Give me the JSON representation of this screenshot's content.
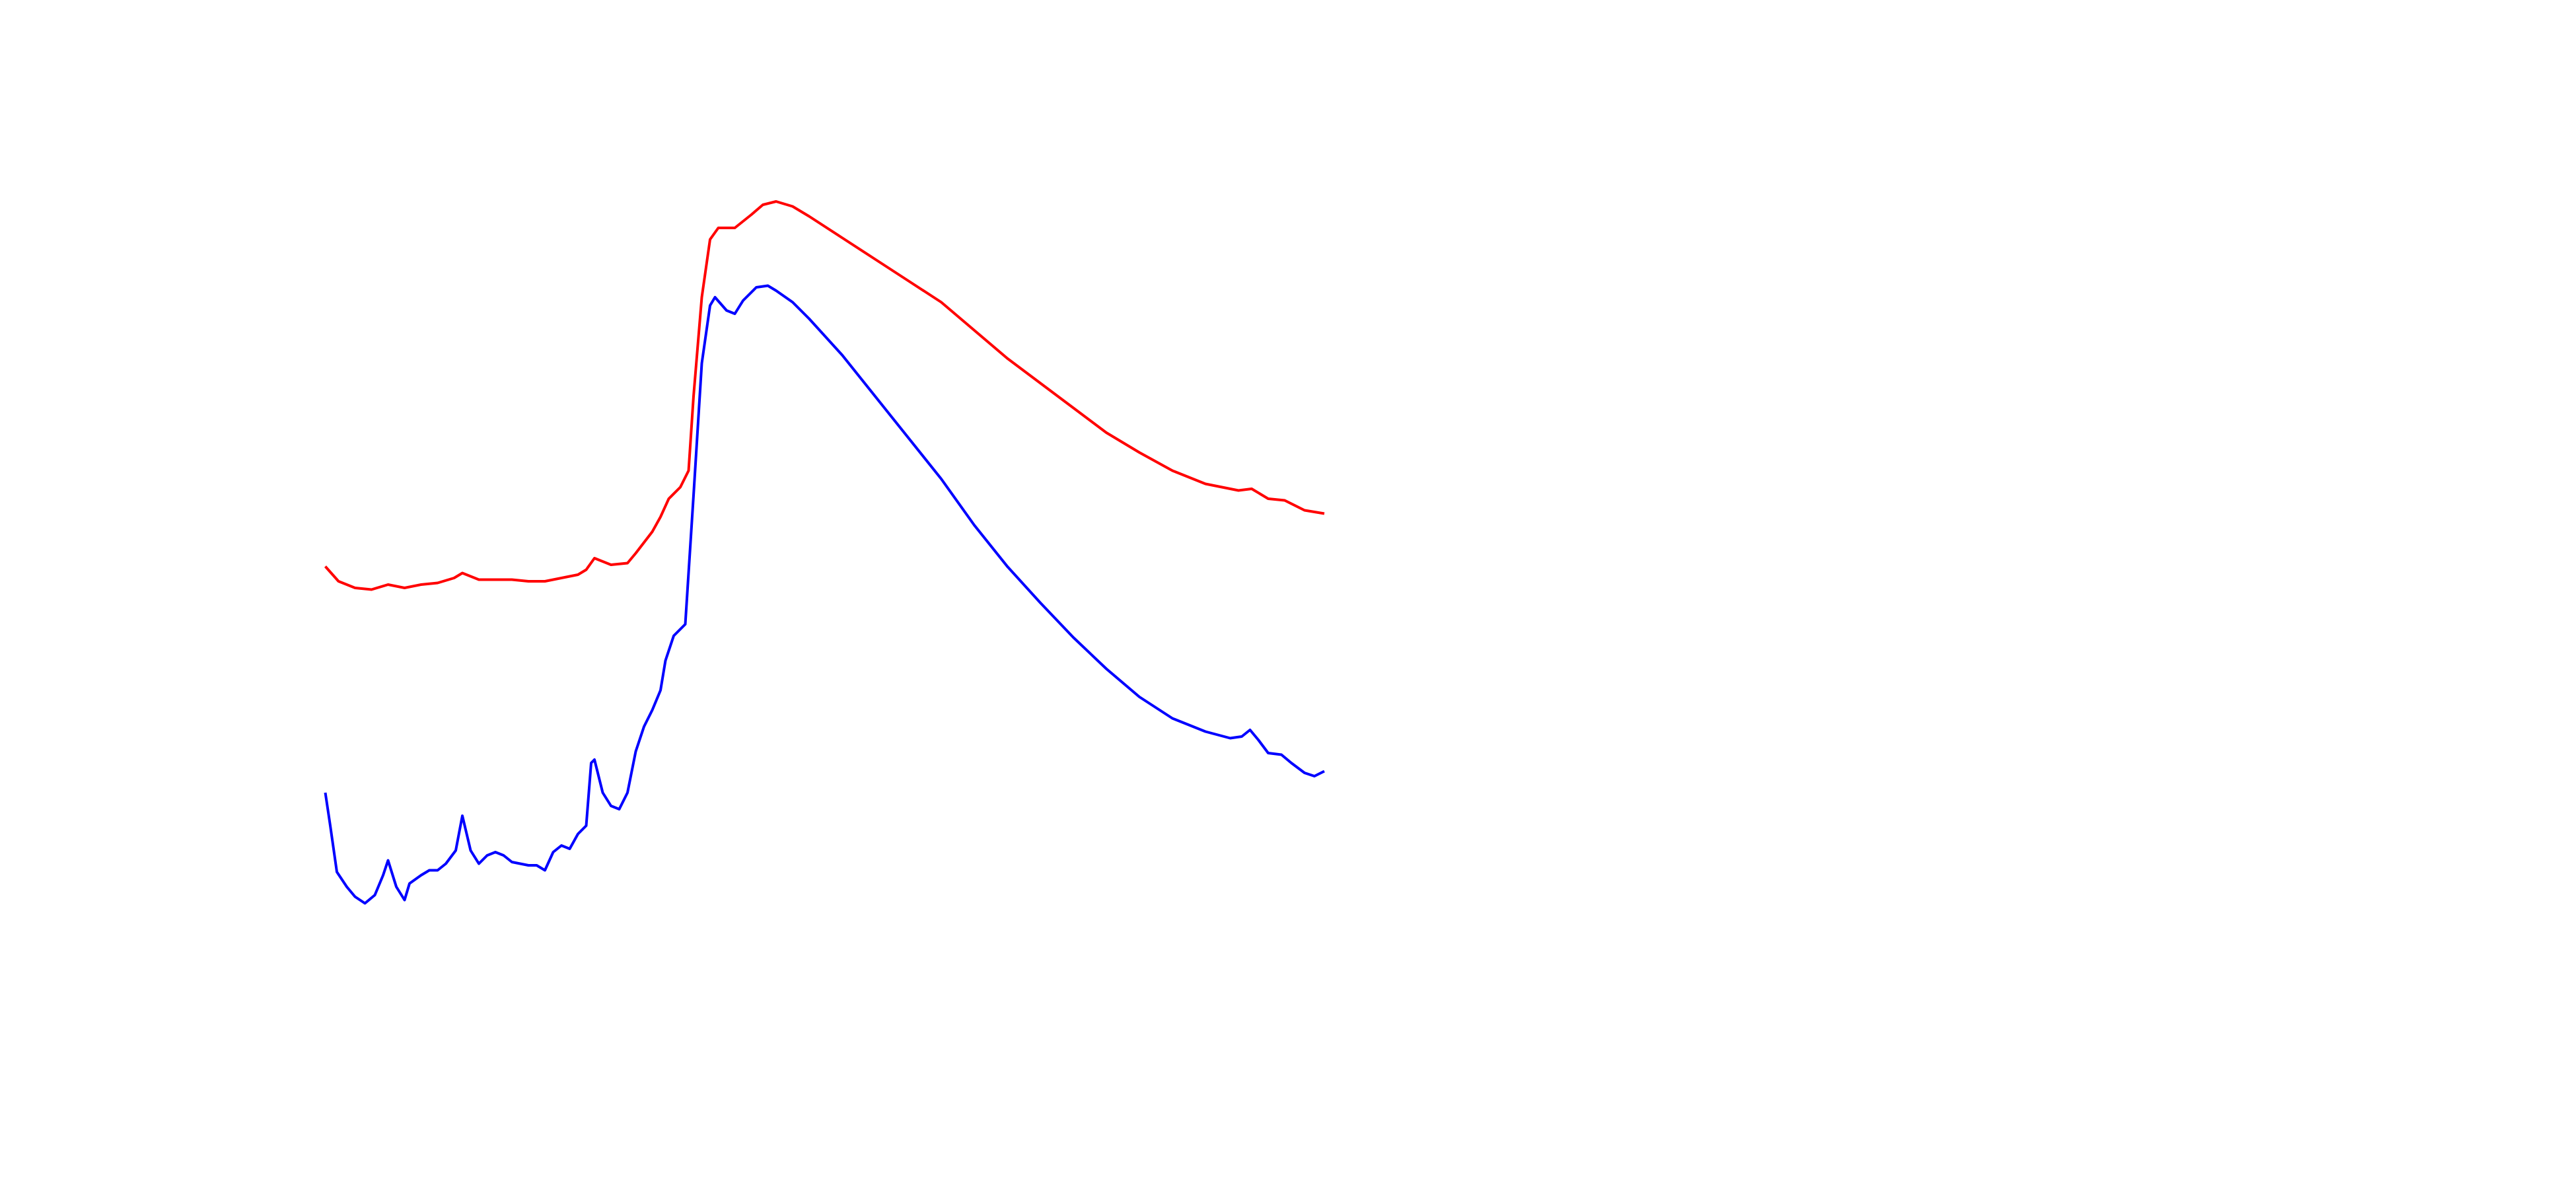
{
  "chart_data": {
    "type": "line",
    "xlim": [
      0,
      1560
    ],
    "ylim": [
      0,
      720
    ],
    "series": [
      {
        "color": "#ff0000",
        "x": [
          197,
          205,
          215,
          225,
          235,
          245,
          255,
          265,
          275,
          280,
          290,
          300,
          310,
          320,
          330,
          340,
          350,
          355,
          360,
          365,
          370,
          380,
          385,
          395,
          400,
          405,
          412,
          417,
          420,
          425,
          430,
          435,
          445,
          455,
          462,
          470,
          480,
          490,
          510,
          530,
          550,
          570,
          590,
          610,
          630,
          650,
          670,
          690,
          710,
          730,
          750,
          758,
          768,
          778,
          790,
          802
        ],
        "values": [
          377,
          368,
          364,
          363,
          366,
          364,
          366,
          367,
          370,
          373,
          369,
          369,
          369,
          368,
          368,
          370,
          372,
          375,
          382,
          380,
          378,
          379,
          385,
          398,
          407,
          418,
          425,
          435,
          480,
          540,
          575,
          582,
          582,
          590,
          596,
          598,
          595,
          589,
          576,
          563,
          550,
          537,
          520,
          503,
          488,
          473,
          458,
          446,
          435,
          427,
          423,
          424,
          418,
          417,
          411,
          409
        ]
      },
      {
        "color": "#0000ff",
        "x": [
          197,
          200,
          204,
          210,
          215,
          221,
          227,
          232,
          235,
          240,
          245,
          248,
          255,
          260,
          265,
          270,
          276,
          280,
          285,
          290,
          295,
          300,
          305,
          310,
          315,
          320,
          325,
          330,
          335,
          340,
          345,
          350,
          355,
          358,
          360,
          365,
          370,
          375,
          380,
          385,
          390,
          395,
          400,
          403,
          408,
          415,
          420,
          425,
          430,
          433,
          440,
          445,
          450,
          458,
          465,
          470,
          480,
          490,
          510,
          530,
          550,
          570,
          590,
          610,
          630,
          650,
          670,
          690,
          710,
          730,
          745,
          752,
          757,
          762,
          768,
          776,
          782,
          790,
          796,
          802
        ],
        "values": [
          240,
          220,
          192,
          183,
          177,
          173,
          178,
          190,
          199,
          183,
          175,
          185,
          190,
          193,
          193,
          197,
          205,
          226,
          205,
          197,
          202,
          204,
          202,
          198,
          197,
          196,
          196,
          193,
          204,
          208,
          206,
          215,
          220,
          258,
          260,
          240,
          232,
          230,
          240,
          265,
          280,
          290,
          302,
          320,
          335,
          342,
          420,
          500,
          535,
          540,
          532,
          530,
          538,
          546,
          547,
          544,
          537,
          527,
          505,
          480,
          455,
          430,
          402,
          377,
          355,
          334,
          315,
          298,
          285,
          277,
          273,
          274,
          278,
          272,
          264,
          263,
          258,
          252,
          250,
          253
        ]
      }
    ]
  }
}
